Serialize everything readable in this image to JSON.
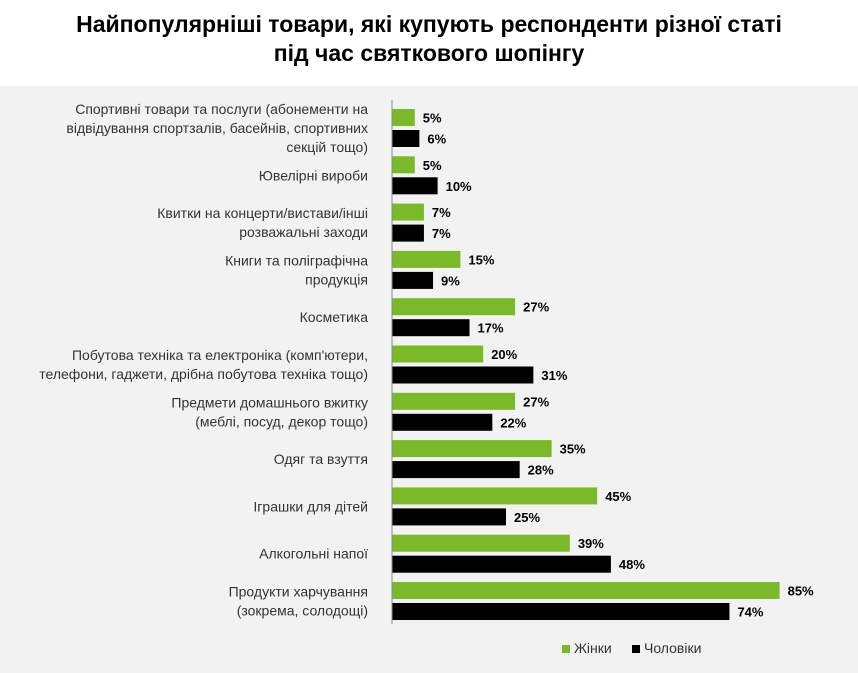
{
  "title_lines": [
    "Найпопулярніші товари, які купують респонденти різної статі",
    "під час святкового шопінгу"
  ],
  "chart_data": {
    "type": "bar",
    "orientation": "horizontal",
    "title": "Найпопулярніші товари, які купують респонденти різної статі під час святкового шопінгу",
    "categories": [
      [
        "Спортивні товари та послуги (абонементи на",
        "відвідування спортзалів, басейнів, спортивних",
        "секцій тощо)"
      ],
      [
        "Ювелірні вироби"
      ],
      [
        "Квитки на концерти/вистави/інші",
        "розважальні заходи"
      ],
      [
        "Книги та поліграфічна",
        "продукція"
      ],
      [
        "Косметика"
      ],
      [
        "Побутова техніка та електроніка (комп'ютери,",
        "телефони, гаджети, дрібна побутова техніка тощо)"
      ],
      [
        "Предмети домашнього вжитку",
        "(меблі, посуд, декор тощо)"
      ],
      [
        "Одяг та взуття"
      ],
      [
        "Іграшки для дітей"
      ],
      [
        "Алкогольні напої"
      ],
      [
        "Продукти харчування",
        "(зокрема, солодощі)"
      ]
    ],
    "series": [
      {
        "name": "Жінки",
        "color": "#7ab929",
        "values": [
          5,
          5,
          7,
          15,
          27,
          20,
          27,
          35,
          45,
          39,
          85
        ],
        "labels": [
          "5%",
          "5%",
          "7%",
          "15%",
          "27%",
          "20%",
          "27%",
          "35%",
          "45%",
          "39%",
          "85%"
        ]
      },
      {
        "name": "Чоловіки",
        "color": "#000000",
        "values": [
          6,
          10,
          7,
          9,
          17,
          31,
          22,
          28,
          25,
          48,
          74
        ],
        "labels": [
          "6%",
          "10%",
          "7%",
          "9%",
          "17%",
          "31%",
          "22%",
          "28%",
          "25%",
          "48%",
          "74%"
        ]
      }
    ],
    "unit": "%",
    "legend_position": "bottom-right"
  }
}
